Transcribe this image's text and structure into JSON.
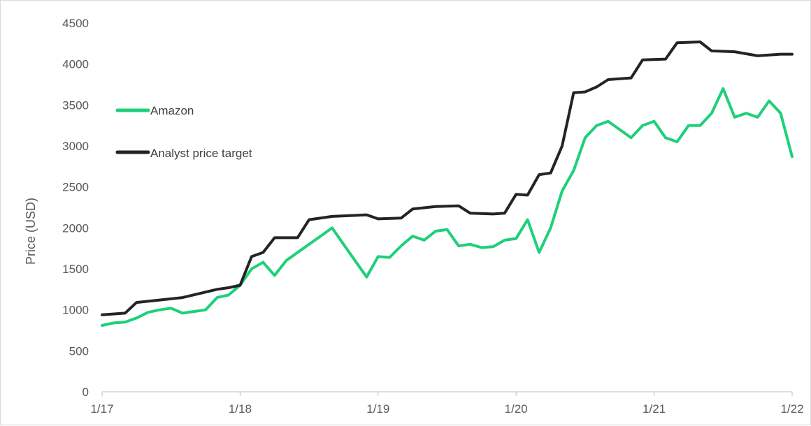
{
  "chart_data": {
    "type": "line",
    "title": "",
    "xlabel": "",
    "ylabel": "Price (USD)",
    "ylim": [
      0,
      4500
    ],
    "yticks": [
      0,
      500,
      1000,
      1500,
      2000,
      2500,
      3000,
      3500,
      4000,
      4500
    ],
    "xlim": [
      "2017-01",
      "2022-01"
    ],
    "xticks": [
      {
        "label": "1/17",
        "date": "2017-01"
      },
      {
        "label": "1/18",
        "date": "2018-01"
      },
      {
        "label": "1/19",
        "date": "2019-01"
      },
      {
        "label": "1/20",
        "date": "2020-01"
      },
      {
        "label": "1/21",
        "date": "2021-01"
      },
      {
        "label": "1/22",
        "date": "2022-01"
      }
    ],
    "grid": false,
    "legend": "left",
    "series": [
      {
        "name": "Amazon",
        "color": "#1fd07a",
        "points": [
          [
            "2017-01",
            810
          ],
          [
            "2017-02",
            840
          ],
          [
            "2017-03",
            850
          ],
          [
            "2017-04",
            900
          ],
          [
            "2017-05",
            970
          ],
          [
            "2017-06",
            1000
          ],
          [
            "2017-07",
            1020
          ],
          [
            "2017-08",
            960
          ],
          [
            "2017-09",
            980
          ],
          [
            "2017-10",
            1000
          ],
          [
            "2017-11",
            1150
          ],
          [
            "2017-12",
            1180
          ],
          [
            "2018-01",
            1300
          ],
          [
            "2018-02",
            1500
          ],
          [
            "2018-03",
            1580
          ],
          [
            "2018-04",
            1420
          ],
          [
            "2018-05",
            1600
          ],
          [
            "2018-06",
            1700
          ],
          [
            "2018-07",
            1800
          ],
          [
            "2018-08",
            1900
          ],
          [
            "2018-09",
            2000
          ],
          [
            "2018-10",
            1800
          ],
          [
            "2018-11",
            1600
          ],
          [
            "2018-12",
            1400
          ],
          [
            "2019-01",
            1650
          ],
          [
            "2019-02",
            1640
          ],
          [
            "2019-03",
            1780
          ],
          [
            "2019-04",
            1900
          ],
          [
            "2019-05",
            1850
          ],
          [
            "2019-06",
            1960
          ],
          [
            "2019-07",
            1980
          ],
          [
            "2019-08",
            1780
          ],
          [
            "2019-09",
            1800
          ],
          [
            "2019-10",
            1760
          ],
          [
            "2019-11",
            1770
          ],
          [
            "2019-12",
            1850
          ],
          [
            "2020-01",
            1870
          ],
          [
            "2020-02",
            2100
          ],
          [
            "2020-03",
            1700
          ],
          [
            "2020-04",
            2000
          ],
          [
            "2020-05",
            2450
          ],
          [
            "2020-06",
            2700
          ],
          [
            "2020-07",
            3100
          ],
          [
            "2020-08",
            3250
          ],
          [
            "2020-09",
            3300
          ],
          [
            "2020-10",
            3200
          ],
          [
            "2020-11",
            3100
          ],
          [
            "2020-12",
            3250
          ],
          [
            "2021-01",
            3300
          ],
          [
            "2021-02",
            3100
          ],
          [
            "2021-03",
            3050
          ],
          [
            "2021-04",
            3250
          ],
          [
            "2021-05",
            3250
          ],
          [
            "2021-06",
            3400
          ],
          [
            "2021-07",
            3700
          ],
          [
            "2021-08",
            3350
          ],
          [
            "2021-09",
            3400
          ],
          [
            "2021-10",
            3350
          ],
          [
            "2021-11",
            3550
          ],
          [
            "2021-12",
            3400
          ],
          [
            "2022-01",
            2870
          ]
        ]
      },
      {
        "name": "Analyst price target",
        "color": "#222426",
        "points": [
          [
            "2017-01",
            940
          ],
          [
            "2017-03",
            960
          ],
          [
            "2017-04",
            1090
          ],
          [
            "2017-06",
            1120
          ],
          [
            "2017-08",
            1150
          ],
          [
            "2017-11",
            1250
          ],
          [
            "2017-12",
            1270
          ],
          [
            "2018-01",
            1300
          ],
          [
            "2018-02",
            1650
          ],
          [
            "2018-03",
            1700
          ],
          [
            "2018-04",
            1880
          ],
          [
            "2018-06",
            1880
          ],
          [
            "2018-07",
            2100
          ],
          [
            "2018-09",
            2140
          ],
          [
            "2018-12",
            2160
          ],
          [
            "2019-01",
            2110
          ],
          [
            "2019-03",
            2120
          ],
          [
            "2019-04",
            2230
          ],
          [
            "2019-06",
            2260
          ],
          [
            "2019-08",
            2270
          ],
          [
            "2019-09",
            2180
          ],
          [
            "2019-11",
            2170
          ],
          [
            "2019-12",
            2180
          ],
          [
            "2020-01",
            2410
          ],
          [
            "2020-02",
            2400
          ],
          [
            "2020-03",
            2650
          ],
          [
            "2020-04",
            2670
          ],
          [
            "2020-05",
            3000
          ],
          [
            "2020-06",
            3650
          ],
          [
            "2020-07",
            3660
          ],
          [
            "2020-08",
            3720
          ],
          [
            "2020-09",
            3810
          ],
          [
            "2020-11",
            3830
          ],
          [
            "2020-12",
            4050
          ],
          [
            "2021-02",
            4060
          ],
          [
            "2021-03",
            4260
          ],
          [
            "2021-05",
            4270
          ],
          [
            "2021-06",
            4160
          ],
          [
            "2021-08",
            4150
          ],
          [
            "2021-10",
            4100
          ],
          [
            "2021-12",
            4120
          ],
          [
            "2022-01",
            4120
          ]
        ]
      }
    ]
  }
}
